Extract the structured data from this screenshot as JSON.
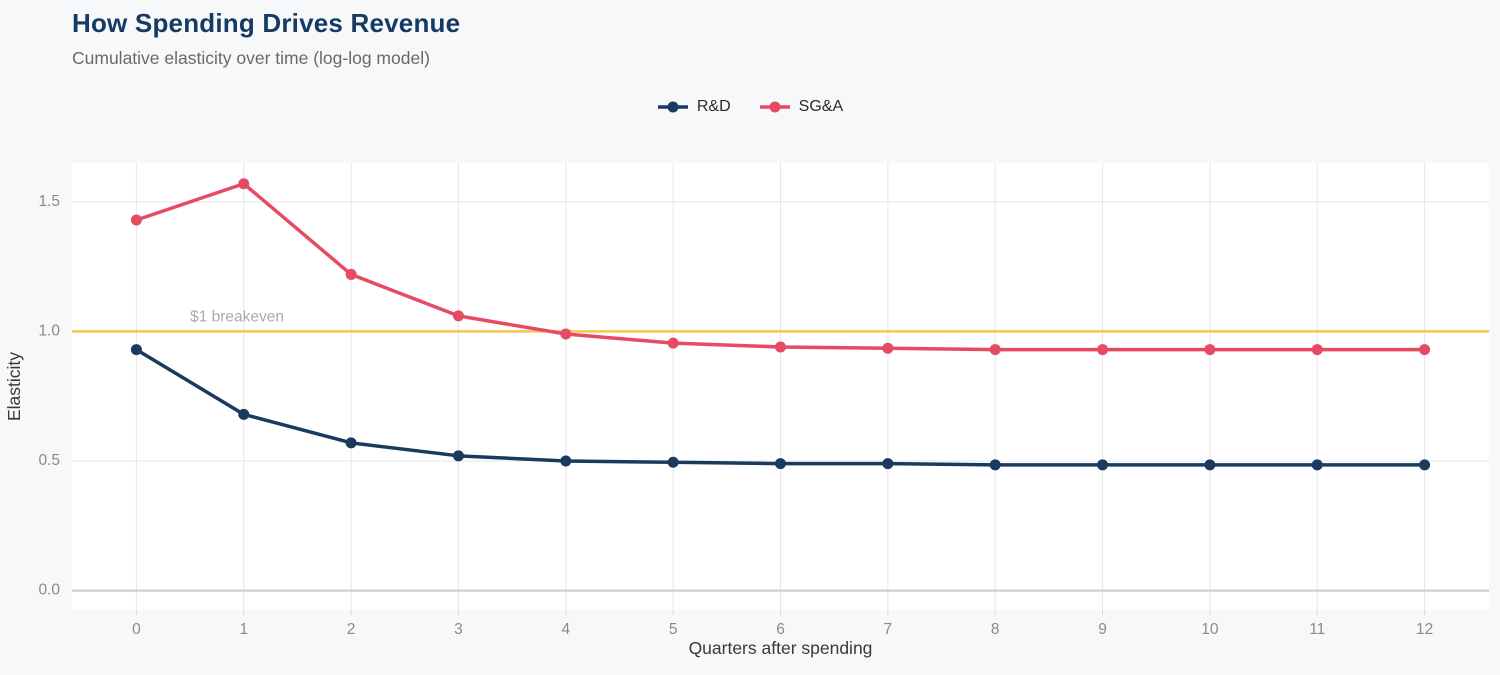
{
  "header": {
    "title": "How Spending Drives Revenue",
    "subtitle": "Cumulative elasticity over time (log-log model)"
  },
  "legend": {
    "items": [
      {
        "label": "R&D"
      },
      {
        "label": "SG&A"
      }
    ]
  },
  "chart_data": {
    "type": "line",
    "title": "How Spending Drives Revenue",
    "subtitle": "Cumulative elasticity over time (log-log model)",
    "xlabel": "Quarters after spending",
    "ylabel": "Elasticity",
    "x": [
      0,
      1,
      2,
      3,
      4,
      5,
      6,
      7,
      8,
      9,
      10,
      11,
      12
    ],
    "series": [
      {
        "name": "R&D",
        "color": "#1b3a5f",
        "values": [
          0.93,
          0.68,
          0.57,
          0.52,
          0.5,
          0.495,
          0.49,
          0.49,
          0.485,
          0.485,
          0.485,
          0.485,
          0.485
        ]
      },
      {
        "name": "SG&A",
        "color": "#e74a63",
        "values": [
          1.43,
          1.57,
          1.22,
          1.06,
          0.99,
          0.955,
          0.94,
          0.935,
          0.93,
          0.93,
          0.93,
          0.93,
          0.93
        ]
      }
    ],
    "reference_line": {
      "value": 1.0,
      "label": "$1 breakeven",
      "label_x": 0.5,
      "color": "#f7c64f",
      "label_color": "#ababab"
    },
    "x_ticks": [
      0,
      1,
      2,
      3,
      4,
      5,
      6,
      7,
      8,
      9,
      10,
      11,
      12
    ],
    "x_tick_labels": [
      "0",
      "1",
      "2",
      "3",
      "4",
      "5",
      "6",
      "7",
      "8",
      "9",
      "10",
      "11",
      "12"
    ],
    "y_ticks": [
      0.0,
      0.5,
      1.0,
      1.5
    ],
    "y_tick_labels": [
      "0.0",
      "0.5",
      "1.0",
      "1.5"
    ],
    "xlim": [
      -0.6,
      12.6
    ],
    "ylim": [
      -0.075,
      1.65
    ],
    "grid": true,
    "legend_position": "top-center",
    "line_width": 3.5,
    "marker_radius": 5.5,
    "colors": {
      "background": "#f7f8fa",
      "plot_background": "#ffffff",
      "gridline": "#e7e7e7",
      "zeroline": "#c9cacb",
      "tick_mark": "#d9d9d9",
      "tick_label": "#8a8a8a",
      "axis_title": "#3a3a3a",
      "title": "#173a64",
      "subtitle": "#696969"
    }
  }
}
